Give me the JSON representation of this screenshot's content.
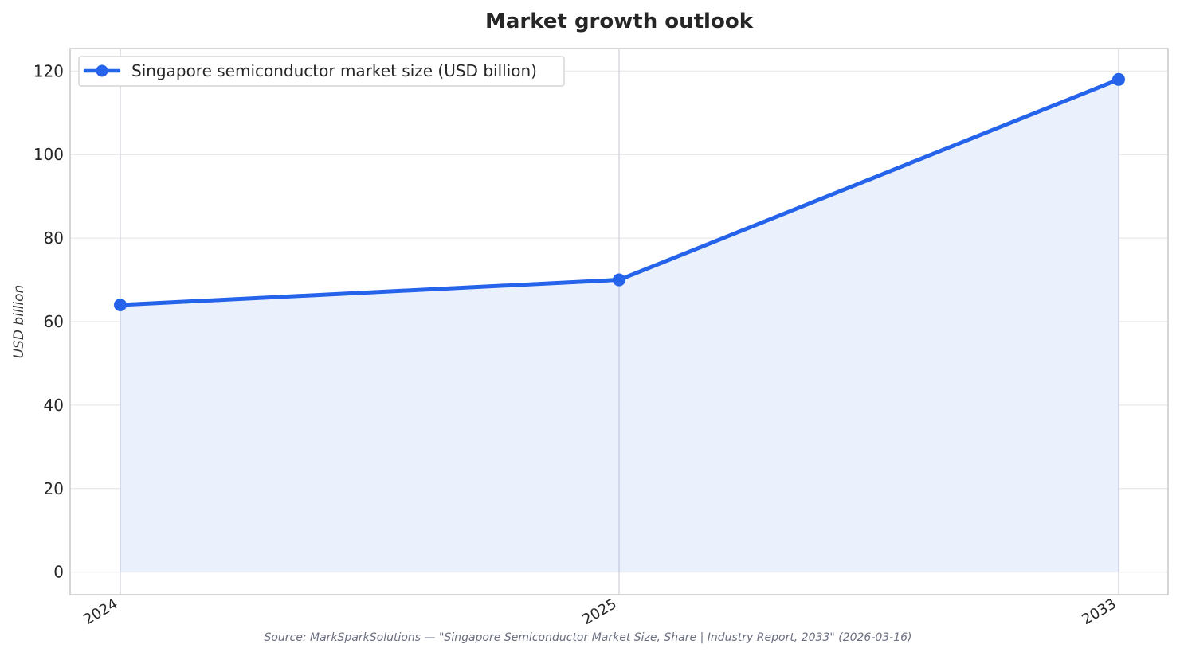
{
  "chart_data": {
    "type": "area",
    "title": "Market growth outlook",
    "xlabel": "",
    "ylabel": "USD billion",
    "categories": [
      "2024",
      "2025",
      "2033"
    ],
    "series": [
      {
        "name": "Singapore semiconductor market size (USD billion)",
        "values": [
          64,
          70,
          118
        ]
      }
    ],
    "yticks": [
      "0",
      "20",
      "40",
      "60",
      "80",
      "100",
      "120"
    ],
    "ylim": [
      -5.4,
      125.4
    ],
    "grid": true,
    "legend_position": "top-left",
    "source": "Source: MarkSparkSolutions — \"Singapore Semiconductor Market Size, Share | Industry Report, 2033\" (2026-03-16)",
    "colors": {
      "line": "#2563eb",
      "fill": "#eaf0fc",
      "grid": "#e8e8e8",
      "axes": "#c9c9c9"
    }
  }
}
